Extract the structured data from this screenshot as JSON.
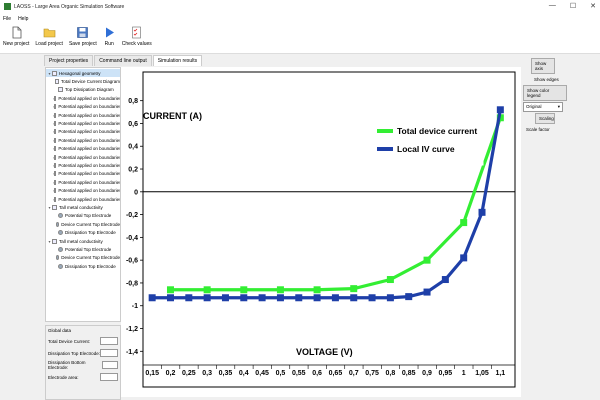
{
  "window": {
    "title": "LAOSS - Large Area Organic Simulation Software"
  },
  "window_controls": {
    "minimize": "—",
    "maximize": "☐",
    "close": "✕"
  },
  "menu": [
    "File",
    "Help"
  ],
  "toolbar": [
    {
      "label": "New project",
      "icon": "new-file-icon"
    },
    {
      "label": "Load project",
      "icon": "folder-icon"
    },
    {
      "label": "Save project",
      "icon": "save-icon"
    },
    {
      "label": "Run",
      "icon": "run-icon"
    },
    {
      "label": "Check values",
      "icon": "checklist-icon"
    }
  ],
  "tabs": [
    "Project properties",
    "Command line output",
    "Simulation results"
  ],
  "active_tab": 2,
  "tree": [
    {
      "label": "Hexagonal geometry",
      "level": 0,
      "exp": "▾",
      "selected": true
    },
    {
      "label": "Total Device Current Diagram",
      "level": 1,
      "exp": ""
    },
    {
      "label": "Top Dissipation Diagram",
      "level": 1,
      "exp": ""
    },
    {
      "label": "Potential applied on boundaries.e",
      "level": 1,
      "exp": "›"
    },
    {
      "label": "Potential applied on boundaries.e",
      "level": 1,
      "exp": "›"
    },
    {
      "label": "Potential applied on boundaries.e",
      "level": 1,
      "exp": "›"
    },
    {
      "label": "Potential applied on boundaries.e",
      "level": 1,
      "exp": "›"
    },
    {
      "label": "Potential applied on boundaries.e",
      "level": 1,
      "exp": "›"
    },
    {
      "label": "Potential applied on boundaries.e",
      "level": 1,
      "exp": "›"
    },
    {
      "label": "Potential applied on boundaries.e",
      "level": 1,
      "exp": "›"
    },
    {
      "label": "Potential applied on boundaries.e",
      "level": 1,
      "exp": "›"
    },
    {
      "label": "Potential applied on boundaries.e",
      "level": 1,
      "exp": "›"
    },
    {
      "label": "Potential applied on boundaries.e",
      "level": 1,
      "exp": "›"
    },
    {
      "label": "Potential applied on boundaries.e",
      "level": 1,
      "exp": "›"
    },
    {
      "label": "Potential applied on boundaries.e",
      "level": 1,
      "exp": "›"
    },
    {
      "label": "Potential applied on boundaries.e",
      "level": 1,
      "exp": "›"
    },
    {
      "label": "Tall metal conductivity",
      "level": 0,
      "exp": "▾"
    },
    {
      "label": "Potential Top Electrode",
      "level": 1,
      "exp": ""
    },
    {
      "label": "Device Current Top Electrode",
      "level": 1,
      "exp": ""
    },
    {
      "label": "Dissipation Top Electrode",
      "level": 1,
      "exp": ""
    },
    {
      "label": "Tall metal conductivity",
      "level": 0,
      "exp": "▾"
    },
    {
      "label": "Potential Top Electrode",
      "level": 1,
      "exp": ""
    },
    {
      "label": "Device Current Top Electrode",
      "level": 1,
      "exp": ""
    },
    {
      "label": "Dissipation Top Electrode",
      "level": 1,
      "exp": ""
    }
  ],
  "global_data": {
    "header": "Global data",
    "rows": [
      "Total Device Current:",
      "Dissipation Top Electrode:",
      "Dissipation Bottom Electrode:",
      "Electrode area:"
    ]
  },
  "right_panel": {
    "show_axis": "Show axis",
    "show_edges": "Show edges",
    "show_color_legend": "Show color legend",
    "original": "Original",
    "scaling": "Scaling",
    "scale_factor": "Scale factor"
  },
  "chart_data": {
    "type": "line",
    "ylabel": "CURRENT (A)",
    "xlabel": "VOLTAGE (V)",
    "x_ticks": [
      "0,15",
      "0,2",
      "0,25",
      "0,3",
      "0,35",
      "0,4",
      "0,45",
      "0,5",
      "0,55",
      "0,6",
      "0,65",
      "0,7",
      "0,75",
      "0,8",
      "0,85",
      "0,9",
      "0,95",
      "1",
      "1,05",
      "1,1"
    ],
    "y_ticks": [
      "0,8",
      "0,6",
      "0,4",
      "0,2",
      "0",
      "-0,2",
      "-0,4",
      "-0,6",
      "-0,8",
      "-1",
      "-1,2",
      "-1,4"
    ],
    "xlim": [
      0.125,
      1.14
    ],
    "ylim": [
      -1.45,
      0.92
    ],
    "series": [
      {
        "name": "Total device current",
        "color": "#33ee33",
        "x": [
          0.2,
          0.3,
          0.4,
          0.5,
          0.6,
          0.7,
          0.8,
          0.9,
          1.0,
          1.1
        ],
        "y": [
          -0.86,
          -0.86,
          -0.86,
          -0.86,
          -0.86,
          -0.85,
          -0.77,
          -0.6,
          -0.27,
          0.65
        ]
      },
      {
        "name": "Local IV curve",
        "color": "#1e3fa8",
        "x": [
          0.15,
          0.2,
          0.25,
          0.3,
          0.35,
          0.4,
          0.45,
          0.5,
          0.55,
          0.6,
          0.65,
          0.7,
          0.75,
          0.8,
          0.85,
          0.9,
          0.95,
          1.0,
          1.05,
          1.1
        ],
        "y": [
          -0.93,
          -0.93,
          -0.93,
          -0.93,
          -0.93,
          -0.93,
          -0.93,
          -0.93,
          -0.93,
          -0.93,
          -0.93,
          -0.93,
          -0.93,
          -0.93,
          -0.92,
          -0.88,
          -0.77,
          -0.58,
          -0.18,
          0.72
        ]
      }
    ]
  }
}
